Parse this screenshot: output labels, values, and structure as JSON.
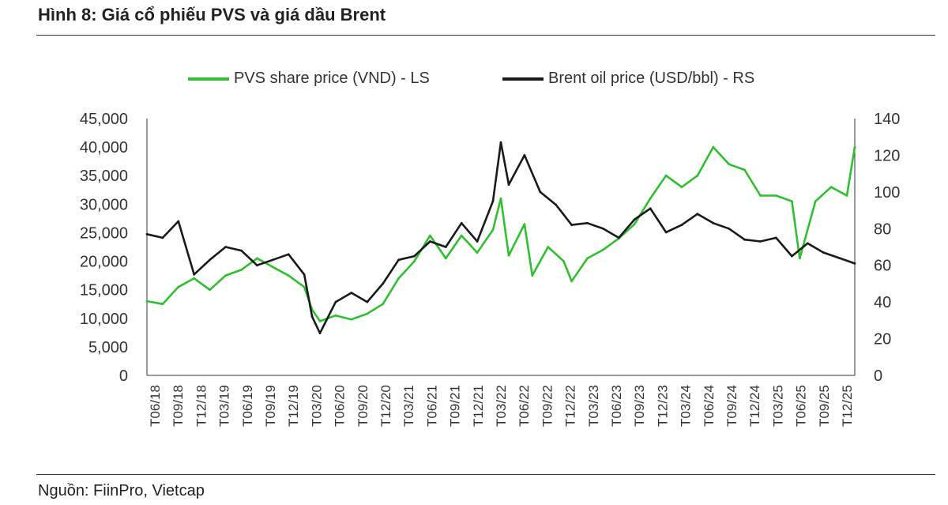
{
  "figure": {
    "title": "Hình 8: Giá cổ phiếu PVS và giá dầu Brent",
    "source": "Nguồn: FiinPro, Vietcap"
  },
  "colors": {
    "pvs": "#2fbf2f",
    "brent": "#1a1a1a",
    "axis": "#333333"
  },
  "chart_data": {
    "type": "line",
    "title": "",
    "legend": "top",
    "grid": false,
    "x_tick_labels": [
      "T06/18",
      "T09/18",
      "T12/18",
      "T03/19",
      "T06/19",
      "T09/19",
      "T12/19",
      "T03/20",
      "T06/20",
      "T09/20",
      "T12/20",
      "T03/21",
      "T06/21",
      "T09/21",
      "T12/21",
      "T03/22",
      "T06/22",
      "T09/22",
      "T12/22",
      "T03/23",
      "T06/23",
      "T09/23",
      "T12/23",
      "T03/24",
      "T06/24",
      "T09/24",
      "T12/24",
      "T03/25",
      "T06/25",
      "T09/25",
      "T12/25"
    ],
    "y_left": {
      "label": "",
      "min": 0,
      "max": 45000,
      "ticks": [
        "0",
        "5,000",
        "10,000",
        "15,000",
        "20,000",
        "25,000",
        "30,000",
        "35,000",
        "40,000",
        "45,000"
      ]
    },
    "y_right": {
      "label": "",
      "min": 0,
      "max": 140,
      "ticks": [
        "0",
        "20",
        "40",
        "60",
        "80",
        "100",
        "120",
        "140"
      ]
    },
    "series": [
      {
        "name": "PVS share price (VND) - LS",
        "axis": "left",
        "x": [
          "2018-06",
          "2018-08",
          "2018-10",
          "2018-12",
          "2019-02",
          "2019-04",
          "2019-06",
          "2019-08",
          "2019-10",
          "2019-12",
          "2020-02",
          "2020-03",
          "2020-04",
          "2020-06",
          "2020-08",
          "2020-10",
          "2020-12",
          "2021-02",
          "2021-04",
          "2021-06",
          "2021-08",
          "2021-10",
          "2021-12",
          "2022-02",
          "2022-03",
          "2022-04",
          "2022-06",
          "2022-07",
          "2022-09",
          "2022-11",
          "2022-12",
          "2023-02",
          "2023-04",
          "2023-06",
          "2023-08",
          "2023-10",
          "2023-12",
          "2024-02",
          "2024-04",
          "2024-06",
          "2024-08",
          "2024-10",
          "2024-12",
          "2025-02",
          "2025-04",
          "2025-05",
          "2025-07",
          "2025-09",
          "2025-11",
          "2025-12"
        ],
        "values": [
          13000,
          12500,
          15500,
          17000,
          15000,
          17500,
          18500,
          20500,
          19000,
          17500,
          15500,
          11500,
          9500,
          10500,
          9800,
          10800,
          12500,
          17000,
          20000,
          24500,
          20500,
          24500,
          21500,
          25500,
          31000,
          21000,
          26500,
          17500,
          22500,
          20000,
          16500,
          20500,
          22000,
          24000,
          26500,
          31000,
          35000,
          33000,
          35000,
          40000,
          37000,
          36000,
          31500,
          31500,
          30500,
          20500,
          30500,
          33000,
          31500,
          40000
        ]
      },
      {
        "name": "Brent oil price (USD/bbl) - RS",
        "axis": "right",
        "x": [
          "2018-06",
          "2018-08",
          "2018-10",
          "2018-12",
          "2019-02",
          "2019-04",
          "2019-06",
          "2019-08",
          "2019-10",
          "2019-12",
          "2020-02",
          "2020-03",
          "2020-04",
          "2020-06",
          "2020-08",
          "2020-10",
          "2020-12",
          "2021-02",
          "2021-04",
          "2021-06",
          "2021-08",
          "2021-10",
          "2021-12",
          "2022-02",
          "2022-03",
          "2022-04",
          "2022-06",
          "2022-08",
          "2022-10",
          "2022-12",
          "2023-02",
          "2023-04",
          "2023-06",
          "2023-08",
          "2023-10",
          "2023-12",
          "2024-02",
          "2024-04",
          "2024-06",
          "2024-08",
          "2024-10",
          "2024-12",
          "2025-02",
          "2025-04",
          "2025-06",
          "2025-08",
          "2025-10",
          "2025-12"
        ],
        "values": [
          77,
          75,
          84,
          55,
          63,
          70,
          68,
          60,
          63,
          66,
          55,
          32,
          23,
          40,
          45,
          40,
          50,
          63,
          65,
          73,
          70,
          83,
          73,
          95,
          127,
          104,
          120,
          100,
          93,
          82,
          83,
          80,
          75,
          85,
          91,
          78,
          82,
          88,
          83,
          80,
          74,
          73,
          75,
          65,
          72,
          67,
          64,
          61
        ]
      }
    ]
  }
}
